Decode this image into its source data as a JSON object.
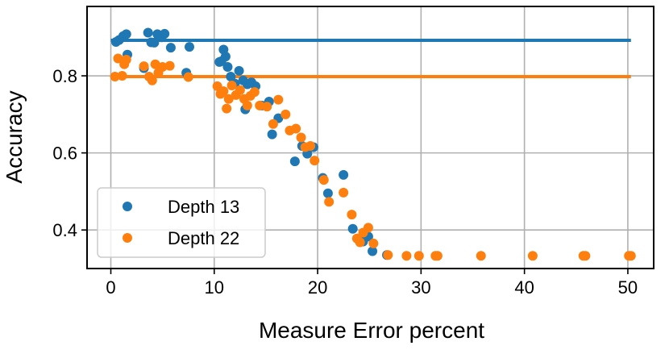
{
  "chart_data": {
    "type": "scatter",
    "title": "",
    "xlabel": "Measure Error percent",
    "ylabel": "Accuracy",
    "xlim": [
      -2.3,
      52.5
    ],
    "ylim": [
      0.3,
      0.98
    ],
    "xticks": [
      0,
      10,
      20,
      30,
      40,
      50
    ],
    "yticks": [
      0.4,
      0.6,
      0.8
    ],
    "xtick_labels": [
      "0",
      "10",
      "20",
      "30",
      "40",
      "50"
    ],
    "ytick_labels": [
      "0.4",
      "0.6",
      "0.8"
    ],
    "grid": true,
    "legend_position": "lower-left",
    "series": [
      {
        "name": "Depth 13",
        "color": "#1f77b4",
        "baseline": 0.892,
        "x": [
          0.5,
          0.8,
          1.2,
          1.5,
          1.6,
          3.2,
          3.6,
          3.9,
          4.2,
          4.5,
          4.9,
          5.2,
          5.8,
          7.3,
          7.6,
          10.5,
          10.7,
          10.9,
          11.1,
          11.3,
          11.6,
          12.0,
          12.4,
          12.8,
          13.0,
          13.2,
          13.6,
          14.0,
          14.6,
          15.3,
          15.6,
          16.2,
          17.8,
          18.5,
          19.0,
          19.6,
          20.5,
          21.0,
          22.5,
          23.4,
          24.1,
          24.4,
          24.9,
          25.3,
          26.7
        ],
        "y": [
          0.888,
          0.893,
          0.903,
          0.908,
          0.855,
          0.82,
          0.912,
          0.887,
          0.886,
          0.908,
          0.9,
          0.909,
          0.873,
          0.808,
          0.875,
          0.836,
          0.838,
          0.868,
          0.85,
          0.823,
          0.798,
          0.78,
          0.813,
          0.788,
          0.713,
          0.778,
          0.783,
          0.773,
          0.723,
          0.733,
          0.648,
          0.69,
          0.578,
          0.618,
          0.598,
          0.615,
          0.535,
          0.495,
          0.543,
          0.403,
          0.378,
          0.37,
          0.383,
          0.345,
          0.335
        ]
      },
      {
        "name": "Depth 22",
        "color": "#ff7f0e",
        "baseline": 0.798,
        "x": [
          0.4,
          0.7,
          1.1,
          1.3,
          1.5,
          3.2,
          3.7,
          4.0,
          4.3,
          4.6,
          5.0,
          5.7,
          7.5,
          10.3,
          10.6,
          10.9,
          11.2,
          11.4,
          11.7,
          12.1,
          12.5,
          12.9,
          13.2,
          13.5,
          13.9,
          14.4,
          15.1,
          15.7,
          16.2,
          16.9,
          17.3,
          17.9,
          18.4,
          18.8,
          19.3,
          19.7,
          20.6,
          21.1,
          22.5,
          23.3,
          23.8,
          24.1,
          24.4,
          24.9,
          25.4,
          26.8,
          28.6,
          29.8,
          31.4,
          31.6,
          35.8,
          40.8,
          45.7,
          45.9,
          50.1,
          50.3
        ],
        "y": [
          0.798,
          0.845,
          0.8,
          0.83,
          0.842,
          0.825,
          0.798,
          0.788,
          0.83,
          0.808,
          0.823,
          0.826,
          0.797,
          0.773,
          0.753,
          0.76,
          0.715,
          0.74,
          0.775,
          0.75,
          0.763,
          0.74,
          0.723,
          0.748,
          0.758,
          0.723,
          0.72,
          0.675,
          0.738,
          0.7,
          0.658,
          0.663,
          0.64,
          0.615,
          0.618,
          0.58,
          0.53,
          0.473,
          0.497,
          0.44,
          0.378,
          0.368,
          0.393,
          0.406,
          0.365,
          0.335,
          0.333,
          0.333,
          0.333,
          0.333,
          0.333,
          0.333,
          0.333,
          0.333,
          0.333,
          0.333
        ]
      }
    ]
  }
}
